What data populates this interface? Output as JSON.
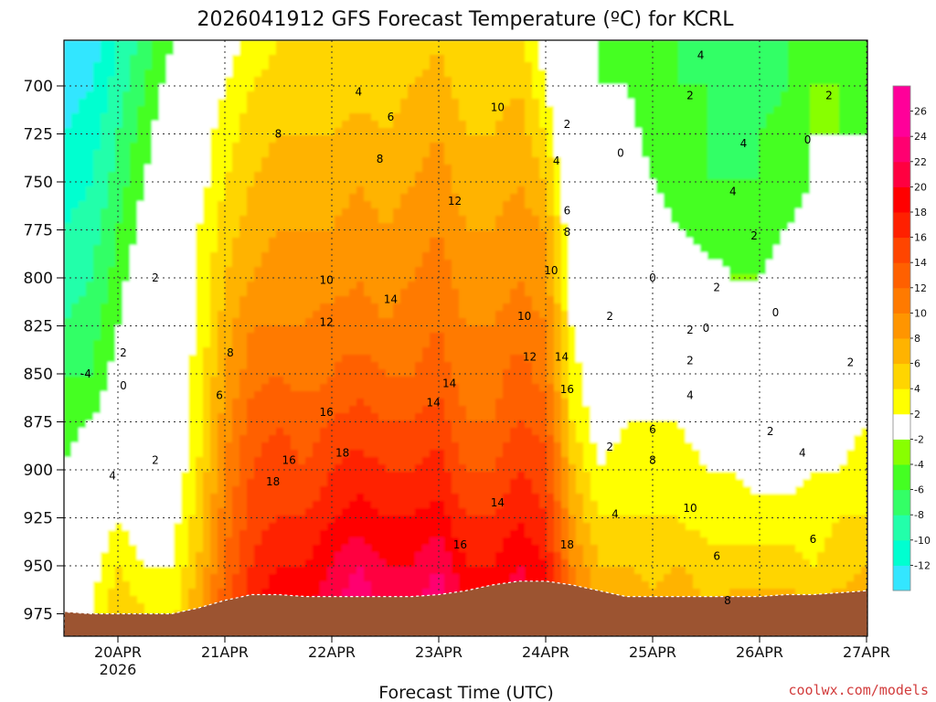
{
  "chart_data": {
    "type": "contour",
    "title": "2026041912 GFS Forecast Temperature (ºC) for KCRL",
    "xlabel": "Forecast Time (UTC)",
    "ylabel": "",
    "credit": "coolwx.com/models",
    "x_ticks": [
      "20APR",
      "21APR",
      "22APR",
      "23APR",
      "24APR",
      "25APR",
      "26APR",
      "27APR"
    ],
    "x_tick_year": "2026",
    "xlim_days": [
      19.5,
      27.0
    ],
    "y_ticks": [
      700,
      725,
      750,
      775,
      800,
      825,
      850,
      875,
      900,
      925,
      950,
      975
    ],
    "ylim_hpa": [
      980,
      680
    ],
    "grid": true,
    "colorbar": {
      "levels": [
        -12,
        -10,
        -8,
        -6,
        -4,
        -2,
        2,
        4,
        6,
        8,
        10,
        12,
        14,
        16,
        18,
        20,
        22,
        24,
        26
      ],
      "colors": [
        "#33e6ff",
        "#00ffd0",
        "#22ffaa",
        "#33ff66",
        "#44ff22",
        "#88ff00",
        "#ffffff",
        "#ffff00",
        "#ffd500",
        "#ffb300",
        "#ff9500",
        "#ff7a00",
        "#ff6000",
        "#ff4500",
        "#ff2000",
        "#ff0000",
        "#ff0040",
        "#ff0070",
        "#ff0099",
        "#ff0099"
      ]
    },
    "time_days": [
      19.5,
      19.75,
      20.0,
      20.25,
      20.5,
      20.75,
      21.0,
      21.25,
      21.5,
      21.75,
      22.0,
      22.25,
      22.5,
      22.75,
      23.0,
      23.25,
      23.5,
      23.75,
      24.0,
      24.25,
      24.5,
      24.75,
      25.0,
      25.25,
      25.5,
      25.75,
      26.0,
      26.25,
      26.5,
      26.75,
      27.0
    ],
    "pressure_levels": [
      975,
      950,
      925,
      900,
      875,
      850,
      825,
      800,
      775,
      750,
      725,
      700,
      680
    ],
    "surface_pressure_hpa": [
      974,
      975,
      975,
      975,
      975,
      972,
      968,
      965,
      965,
      966,
      966,
      966,
      966,
      966,
      965,
      963,
      960,
      958,
      958,
      960,
      963,
      966,
      966,
      966,
      966,
      966,
      966,
      965,
      965,
      964,
      963
    ],
    "temperature_c": [
      [
        2,
        4,
        8,
        6,
        5,
        10,
        16,
        20,
        22,
        22,
        24,
        26,
        24,
        24,
        26,
        22,
        22,
        24,
        22,
        14,
        10,
        10,
        9,
        10,
        8,
        9,
        9,
        9,
        9,
        9,
        10
      ],
      [
        0,
        3,
        6,
        4,
        4,
        8,
        14,
        18,
        20,
        20,
        22,
        24,
        22,
        22,
        24,
        20,
        20,
        22,
        20,
        12,
        8,
        8,
        7,
        8,
        7,
        7,
        7,
        7,
        6,
        7,
        8
      ],
      [
        -1,
        2,
        4,
        2,
        3,
        7,
        13,
        17,
        18,
        18,
        20,
        21,
        20,
        20,
        21,
        18,
        18,
        20,
        18,
        10,
        6,
        6,
        6,
        6,
        5,
        5,
        5,
        5,
        5,
        6,
        6
      ],
      [
        -2,
        0,
        2,
        1,
        2,
        6,
        12,
        16,
        17,
        16,
        18,
        19,
        18,
        18,
        19,
        16,
        16,
        18,
        17,
        8,
        4,
        5,
        5,
        5,
        4,
        4,
        3,
        3,
        4,
        4,
        5
      ],
      [
        -3,
        -2,
        0,
        0,
        2,
        5,
        11,
        15,
        16,
        15,
        16,
        17,
        16,
        16,
        17,
        14,
        14,
        16,
        15,
        6,
        3,
        4,
        4,
        4,
        3,
        3,
        2,
        2,
        3,
        3,
        4
      ],
      [
        -4,
        -4,
        -1,
        0,
        2,
        5,
        10,
        13,
        14,
        13,
        14,
        15,
        14,
        14,
        15,
        13,
        13,
        15,
        13,
        5,
        2,
        3,
        3,
        3,
        2,
        2,
        1,
        1,
        1,
        2,
        3
      ],
      [
        -6,
        -5,
        -2,
        0,
        2,
        4,
        9,
        12,
        12,
        12,
        13,
        13,
        12,
        13,
        14,
        12,
        12,
        13,
        12,
        4,
        1,
        2,
        2,
        2,
        1,
        0,
        -1,
        0,
        0,
        1,
        2
      ],
      [
        -7,
        -6,
        -3,
        0,
        2,
        4,
        8,
        10,
        11,
        11,
        11,
        12,
        11,
        12,
        13,
        11,
        11,
        12,
        11,
        3,
        0,
        1,
        0,
        0,
        -1,
        -2,
        -2,
        -1,
        -1,
        0,
        1
      ],
      [
        -8,
        -7,
        -4,
        -1,
        2,
        4,
        7,
        9,
        10,
        10,
        10,
        11,
        10,
        11,
        12,
        10,
        10,
        11,
        10,
        2,
        0,
        0,
        -1,
        -2,
        -3,
        -3,
        -3,
        -2,
        -1,
        -1,
        0
      ],
      [
        -9,
        -8,
        -5,
        -2,
        1,
        3,
        6,
        8,
        9,
        9,
        9,
        10,
        9,
        10,
        11,
        9,
        9,
        10,
        8,
        1,
        -1,
        0,
        -2,
        -3,
        -4,
        -4,
        -4,
        -3,
        -2,
        -1,
        -1
      ],
      [
        -10,
        -9,
        -6,
        -3,
        0,
        3,
        5,
        7,
        8,
        8,
        8,
        9,
        8,
        9,
        10,
        8,
        8,
        9,
        6,
        0,
        -1,
        -1,
        -3,
        -3,
        -4,
        -5,
        -4,
        -3,
        -2,
        -2,
        -2
      ],
      [
        -11,
        -10,
        -7,
        -4,
        -1,
        2,
        4,
        6,
        7,
        7,
        7,
        7,
        7,
        8,
        9,
        7,
        7,
        8,
        4,
        0,
        -2,
        -2,
        -3,
        -4,
        -4,
        -5,
        -5,
        -4,
        -2,
        -2,
        -3
      ],
      [
        -12,
        -11,
        -8,
        -5,
        -2,
        1,
        3,
        5,
        6,
        6,
        6,
        6,
        6,
        7,
        8,
        6,
        6,
        7,
        3,
        -1,
        -2,
        -3,
        -4,
        -4,
        -5,
        -5,
        -5,
        -4,
        -3,
        -3,
        -3
      ]
    ],
    "contour_labels": [
      {
        "text": "4",
        "t": 22.25,
        "p": 705
      },
      {
        "text": "6",
        "t": 22.55,
        "p": 718
      },
      {
        "text": "8",
        "t": 21.5,
        "p": 727
      },
      {
        "text": "8",
        "t": 22.45,
        "p": 740
      },
      {
        "text": "10",
        "t": 23.55,
        "p": 713
      },
      {
        "text": "12",
        "t": 23.15,
        "p": 762
      },
      {
        "text": "2",
        "t": 24.2,
        "p": 722
      },
      {
        "text": "4",
        "t": 24.1,
        "p": 741
      },
      {
        "text": "6",
        "t": 24.2,
        "p": 767
      },
      {
        "text": "8",
        "t": 24.2,
        "p": 778
      },
      {
        "text": "10",
        "t": 24.05,
        "p": 798
      },
      {
        "text": "10",
        "t": 21.95,
        "p": 803
      },
      {
        "text": "14",
        "t": 22.55,
        "p": 813
      },
      {
        "text": "12",
        "t": 21.95,
        "p": 825
      },
      {
        "text": "10",
        "t": 23.8,
        "p": 822
      },
      {
        "text": "12",
        "t": 23.85,
        "p": 843
      },
      {
        "text": "14",
        "t": 24.15,
        "p": 843
      },
      {
        "text": "16",
        "t": 24.2,
        "p": 860
      },
      {
        "text": "14",
        "t": 23.1,
        "p": 857
      },
      {
        "text": "14",
        "t": 22.95,
        "p": 867
      },
      {
        "text": "16",
        "t": 21.95,
        "p": 872
      },
      {
        "text": "18",
        "t": 22.1,
        "p": 893
      },
      {
        "text": "16",
        "t": 21.6,
        "p": 897
      },
      {
        "text": "18",
        "t": 21.45,
        "p": 908
      },
      {
        "text": "14",
        "t": 23.55,
        "p": 919
      },
      {
        "text": "16",
        "t": 23.2,
        "p": 941
      },
      {
        "text": "18",
        "t": 24.2,
        "p": 941
      },
      {
        "text": "8",
        "t": 21.05,
        "p": 841
      },
      {
        "text": "6",
        "t": 20.95,
        "p": 863
      },
      {
        "text": "2",
        "t": 20.35,
        "p": 802
      },
      {
        "text": "2",
        "t": 20.05,
        "p": 841
      },
      {
        "text": "0",
        "t": 20.05,
        "p": 858
      },
      {
        "text": "-4",
        "t": 19.7,
        "p": 852
      },
      {
        "text": "4",
        "t": 19.95,
        "p": 905
      },
      {
        "text": "2",
        "t": 20.35,
        "p": 897
      },
      {
        "text": "2",
        "t": 24.6,
        "p": 822
      },
      {
        "text": "2",
        "t": 24.6,
        "p": 890
      },
      {
        "text": "4",
        "t": 24.65,
        "p": 925
      },
      {
        "text": "6",
        "t": 25.0,
        "p": 881
      },
      {
        "text": "8",
        "t": 25.0,
        "p": 897
      },
      {
        "text": "10",
        "t": 25.35,
        "p": 922
      },
      {
        "text": "6",
        "t": 25.6,
        "p": 947
      },
      {
        "text": "8",
        "t": 25.7,
        "p": 970
      },
      {
        "text": "0",
        "t": 24.7,
        "p": 737
      },
      {
        "text": "0",
        "t": 25.0,
        "p": 802
      },
      {
        "text": "2",
        "t": 25.35,
        "p": 707
      },
      {
        "text": "4",
        "t": 25.45,
        "p": 686
      },
      {
        "text": "4",
        "t": 25.85,
        "p": 732
      },
      {
        "text": "4",
        "t": 25.75,
        "p": 757
      },
      {
        "text": "2",
        "t": 25.95,
        "p": 780
      },
      {
        "text": "2",
        "t": 25.6,
        "p": 807
      },
      {
        "text": "2",
        "t": 25.35,
        "p": 829
      },
      {
        "text": "0",
        "t": 25.5,
        "p": 828
      },
      {
        "text": "0",
        "t": 26.15,
        "p": 820
      },
      {
        "text": "0",
        "t": 26.45,
        "p": 730
      },
      {
        "text": "2",
        "t": 26.65,
        "p": 707
      },
      {
        "text": "4",
        "t": 25.35,
        "p": 863
      },
      {
        "text": "2",
        "t": 25.35,
        "p": 845
      },
      {
        "text": "2",
        "t": 26.1,
        "p": 882
      },
      {
        "text": "4",
        "t": 26.4,
        "p": 893
      },
      {
        "text": "6",
        "t": 26.5,
        "p": 938
      },
      {
        "text": "2",
        "t": 26.85,
        "p": 846
      }
    ]
  }
}
